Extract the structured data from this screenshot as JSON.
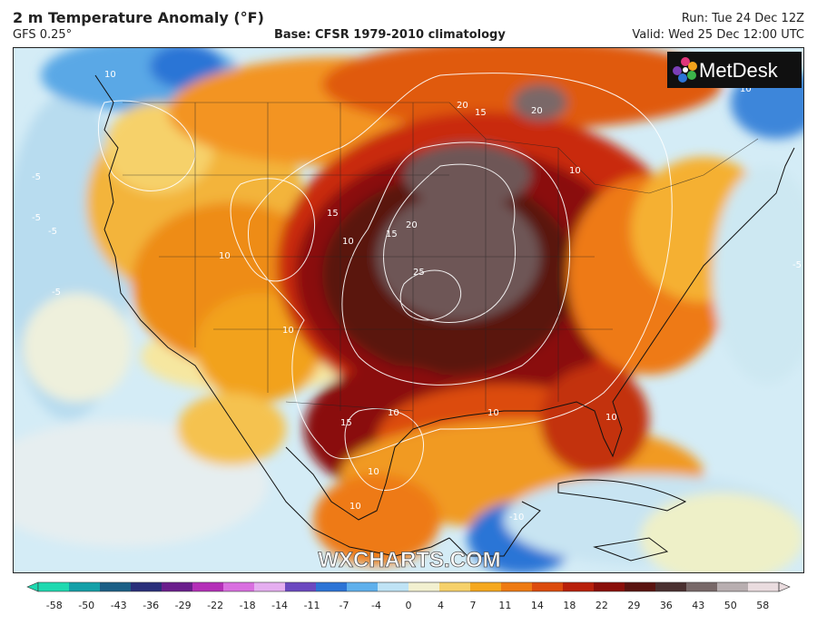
{
  "header": {
    "title": "2 m Temperature Anomaly (°F)",
    "model": "GFS 0.25°",
    "base": "Base: CFSR 1979-2010 climatology",
    "run": "Run: Tue 24 Dec 12Z",
    "valid": "Valid: Wed 25 Dec 12:00 UTC"
  },
  "branding": {
    "logo_text": "MetDesk",
    "watermark": "WXCHARTS.COM"
  },
  "contour_labels": [
    "10",
    "20",
    "15",
    "20",
    "10",
    "15",
    "10",
    "20",
    "15",
    "25",
    "10",
    "10",
    "10",
    "15",
    "10",
    "10",
    "10",
    "10",
    "-10",
    "-5",
    "-5",
    "-5",
    "-5",
    "-5",
    "10"
  ],
  "colorbar": {
    "ticks": [
      "-58",
      "-50",
      "-43",
      "-36",
      "-29",
      "-22",
      "-18",
      "-14",
      "-11",
      "-7",
      "-4",
      "0",
      "4",
      "7",
      "11",
      "14",
      "18",
      "22",
      "29",
      "36",
      "43",
      "50",
      "58"
    ],
    "colors": [
      "#1fd9b0",
      "#14a0a8",
      "#1c5f86",
      "#2a2f7a",
      "#6a1f8c",
      "#b42fb8",
      "#d96fe0",
      "#e5aef0",
      "#6b49c0",
      "#2c74d6",
      "#5fb0ec",
      "#bfe3f5",
      "#f2f0d0",
      "#f6d16a",
      "#f5a81f",
      "#ee7a12",
      "#dc4b0d",
      "#b8200b",
      "#8a0f0a",
      "#5a1410",
      "#4a3030",
      "#786868",
      "#b8aeb0",
      "#eadcdf"
    ]
  }
}
